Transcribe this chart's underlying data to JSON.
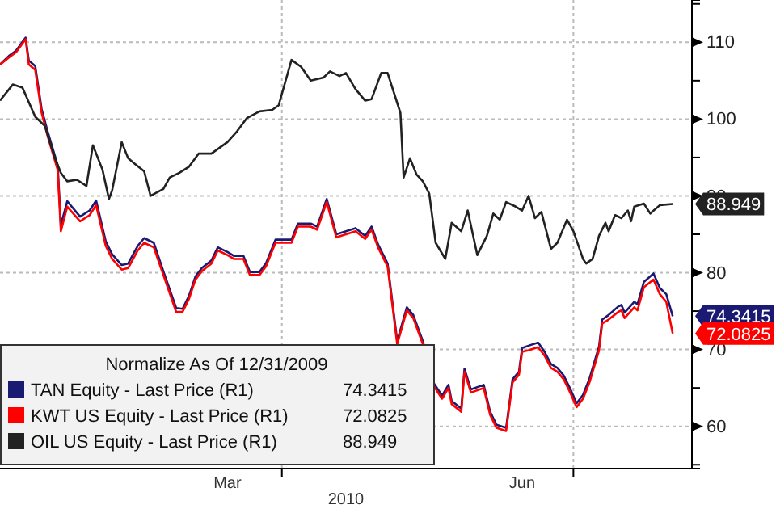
{
  "chart_data": {
    "type": "line",
    "legend_title": "Normalize As Of 12/31/2009",
    "xlabel": "2010",
    "legend": "bottom left",
    "grid": true,
    "line_style": "solid",
    "marker": "none",
    "xlim": [
      "2010-01-03",
      "2010-08-07"
    ],
    "ylim": [
      54.5,
      115.5
    ],
    "xticks": [
      {
        "value": "2010-03-15",
        "label": "Mar"
      },
      {
        "value": "2010-04-01",
        "label": null
      },
      {
        "value": "2010-06-15",
        "label": "Jun"
      },
      {
        "value": "2010-07-01",
        "label": null
      }
    ],
    "yticks": [
      {
        "value": 55,
        "label": null
      },
      60,
      {
        "value": 65,
        "label": null
      },
      70,
      {
        "value": 75,
        "label": null
      },
      80,
      {
        "value": 85,
        "label": null
      },
      90,
      {
        "value": 95,
        "label": null
      },
      100,
      {
        "value": 105,
        "label": null
      },
      110,
      {
        "value": 115,
        "label": null
      }
    ],
    "series": [
      {
        "name": "TAN Equity - Last Price (R1)",
        "color": "#1a1a72",
        "x": [
          "2010-01-03",
          "2010-01-06",
          "2010-01-08",
          "2010-01-11",
          "2010-01-12",
          "2010-01-14",
          "2010-01-16",
          "2010-01-18",
          "2010-01-21",
          "2010-01-22",
          "2010-01-24",
          "2010-01-28",
          "2010-01-31",
          "2010-02-02",
          "2010-02-05",
          "2010-02-07",
          "2010-02-10",
          "2010-02-12",
          "2010-02-15",
          "2010-02-17",
          "2010-02-20",
          "2010-02-23",
          "2010-02-27",
          "2010-03-01",
          "2010-03-03",
          "2010-03-05",
          "2010-03-07",
          "2010-03-10",
          "2010-03-12",
          "2010-03-15",
          "2010-03-17",
          "2010-03-20",
          "2010-03-22",
          "2010-03-25",
          "2010-03-27",
          "2010-03-30",
          "2010-04-04",
          "2010-04-06",
          "2010-04-10",
          "2010-04-12",
          "2010-04-15",
          "2010-04-18",
          "2010-04-21",
          "2010-04-24",
          "2010-04-27",
          "2010-04-29",
          "2010-05-01",
          "2010-05-04",
          "2010-05-07",
          "2010-05-10",
          "2010-05-12",
          "2010-05-15",
          "2010-05-18",
          "2010-05-21",
          "2010-05-23",
          "2010-05-24",
          "2010-05-27",
          "2010-05-28",
          "2010-05-30",
          "2010-06-03",
          "2010-06-05",
          "2010-06-07",
          "2010-06-10",
          "2010-06-12",
          "2010-06-14",
          "2010-06-15",
          "2010-06-17",
          "2010-06-20",
          "2010-06-22",
          "2010-06-24",
          "2010-06-26",
          "2010-06-28",
          "2010-06-30",
          "2010-07-02",
          "2010-07-04",
          "2010-07-06",
          "2010-07-09",
          "2010-07-10",
          "2010-07-12",
          "2010-07-15",
          "2010-07-16",
          "2010-07-17",
          "2010-07-20",
          "2010-07-21",
          "2010-07-23",
          "2010-07-26",
          "2010-07-28",
          "2010-07-30",
          "2010-08-01"
        ],
        "values": [
          107.1,
          108.3,
          108.9,
          110.6,
          107.6,
          106.9,
          101.3,
          98.2,
          94.0,
          86.2,
          89.3,
          87.3,
          88.1,
          89.4,
          84.1,
          82.4,
          81.0,
          81.2,
          83.5,
          84.5,
          83.9,
          80.2,
          75.4,
          75.3,
          77.0,
          79.5,
          80.6,
          81.6,
          83.3,
          82.7,
          82.2,
          82.2,
          80.1,
          80.1,
          81.2,
          84.3,
          84.3,
          86.4,
          86.4,
          86.0,
          89.6,
          85.0,
          85.4,
          85.8,
          84.8,
          86.0,
          83.7,
          81.2,
          71.1,
          75.5,
          74.5,
          71.1,
          65.9,
          64.0,
          65.4,
          63.3,
          62.3,
          67.5,
          64.8,
          65.4,
          61.9,
          60.2,
          59.8,
          66.1,
          67.1,
          70.2,
          70.5,
          70.9,
          69.7,
          68.1,
          67.6,
          66.6,
          64.9,
          63.0,
          64.1,
          66.2,
          70.4,
          73.9,
          74.5,
          75.6,
          75.8,
          74.8,
          76.2,
          75.9,
          78.8,
          79.9,
          78.0,
          77.2,
          74.3415
        ],
        "value_labels": [
          null,
          null,
          null,
          null,
          null,
          null,
          null,
          null,
          null,
          null,
          null,
          null,
          null,
          null,
          null,
          null,
          null,
          null,
          null,
          null,
          null,
          null,
          null,
          null,
          null,
          null,
          null,
          null,
          null,
          null,
          null,
          null,
          null,
          null,
          null,
          null,
          null,
          null,
          null,
          null,
          null,
          null,
          null,
          null,
          null,
          null,
          null,
          null,
          null,
          null,
          null,
          null,
          null,
          null,
          null,
          null,
          null,
          null,
          null,
          null,
          null,
          null,
          null,
          null,
          null,
          null,
          null,
          null,
          null,
          null,
          null,
          null,
          null,
          null,
          null,
          null,
          null,
          null,
          null,
          null,
          null,
          null,
          null,
          null,
          null,
          null,
          null,
          null,
          "74.3415"
        ]
      },
      {
        "name": "KWT US Equity - Last Price (R1)",
        "color": "#ff0000",
        "x": [
          "2010-01-03",
          "2010-01-06",
          "2010-01-08",
          "2010-01-11",
          "2010-01-12",
          "2010-01-14",
          "2010-01-16",
          "2010-01-18",
          "2010-01-21",
          "2010-01-22",
          "2010-01-24",
          "2010-01-28",
          "2010-01-31",
          "2010-02-02",
          "2010-02-05",
          "2010-02-07",
          "2010-02-10",
          "2010-02-12",
          "2010-02-15",
          "2010-02-17",
          "2010-02-20",
          "2010-02-23",
          "2010-02-27",
          "2010-03-01",
          "2010-03-03",
          "2010-03-05",
          "2010-03-07",
          "2010-03-10",
          "2010-03-12",
          "2010-03-15",
          "2010-03-17",
          "2010-03-20",
          "2010-03-22",
          "2010-03-25",
          "2010-03-27",
          "2010-03-30",
          "2010-04-04",
          "2010-04-06",
          "2010-04-10",
          "2010-04-12",
          "2010-04-15",
          "2010-04-18",
          "2010-04-21",
          "2010-04-24",
          "2010-04-27",
          "2010-04-29",
          "2010-05-01",
          "2010-05-04",
          "2010-05-07",
          "2010-05-10",
          "2010-05-12",
          "2010-05-15",
          "2010-05-18",
          "2010-05-21",
          "2010-05-23",
          "2010-05-24",
          "2010-05-27",
          "2010-05-28",
          "2010-05-30",
          "2010-06-03",
          "2010-06-05",
          "2010-06-07",
          "2010-06-10",
          "2010-06-12",
          "2010-06-14",
          "2010-06-15",
          "2010-06-17",
          "2010-06-20",
          "2010-06-22",
          "2010-06-24",
          "2010-06-26",
          "2010-06-28",
          "2010-06-30",
          "2010-07-02",
          "2010-07-04",
          "2010-07-06",
          "2010-07-09",
          "2010-07-10",
          "2010-07-12",
          "2010-07-15",
          "2010-07-16",
          "2010-07-17",
          "2010-07-20",
          "2010-07-21",
          "2010-07-23",
          "2010-07-26",
          "2010-07-28",
          "2010-07-30",
          "2010-08-01"
        ],
        "values": [
          107.1,
          108.1,
          108.7,
          110.4,
          107.1,
          106.4,
          100.8,
          97.6,
          93.4,
          85.4,
          88.6,
          86.7,
          87.5,
          88.8,
          83.5,
          81.8,
          80.4,
          80.6,
          82.9,
          83.9,
          83.3,
          79.7,
          74.9,
          74.9,
          76.6,
          79.1,
          80.2,
          81.2,
          82.9,
          82.3,
          81.8,
          81.8,
          79.7,
          79.7,
          80.8,
          83.9,
          83.9,
          86.0,
          86.0,
          85.6,
          89.2,
          84.6,
          85.0,
          85.4,
          84.4,
          85.6,
          83.3,
          80.8,
          70.7,
          75.1,
          74.1,
          70.7,
          65.5,
          63.6,
          65.0,
          62.9,
          61.9,
          67.1,
          64.4,
          65.0,
          61.5,
          59.8,
          59.4,
          65.7,
          66.7,
          69.7,
          69.9,
          70.3,
          69.2,
          67.6,
          67.1,
          66.1,
          64.4,
          62.5,
          63.6,
          65.7,
          69.9,
          73.4,
          73.9,
          74.9,
          75.1,
          74.1,
          75.5,
          75.1,
          78.1,
          79.1,
          77.2,
          76.2,
          72.0825
        ],
        "value_labels": [
          null,
          null,
          null,
          null,
          null,
          null,
          null,
          null,
          null,
          null,
          null,
          null,
          null,
          null,
          null,
          null,
          null,
          null,
          null,
          null,
          null,
          null,
          null,
          null,
          null,
          null,
          null,
          null,
          null,
          null,
          null,
          null,
          null,
          null,
          null,
          null,
          null,
          null,
          null,
          null,
          null,
          null,
          null,
          null,
          null,
          null,
          null,
          null,
          null,
          null,
          null,
          null,
          null,
          null,
          null,
          null,
          null,
          null,
          null,
          null,
          null,
          null,
          null,
          null,
          null,
          null,
          null,
          null,
          null,
          null,
          null,
          null,
          null,
          null,
          null,
          null,
          null,
          null,
          null,
          null,
          null,
          null,
          null,
          null,
          null,
          null,
          null,
          null,
          "72.0825"
        ]
      },
      {
        "name": "OIL US Equity - Last Price (R1)",
        "color": "#222222",
        "x": [
          "2010-01-03",
          "2010-01-07",
          "2010-01-10",
          "2010-01-12",
          "2010-01-14",
          "2010-01-17",
          "2010-01-20",
          "2010-01-22",
          "2010-01-24",
          "2010-01-27",
          "2010-01-30",
          "2010-02-01",
          "2010-02-04",
          "2010-02-06",
          "2010-02-07",
          "2010-02-10",
          "2010-02-12",
          "2010-02-14",
          "2010-02-17",
          "2010-02-19",
          "2010-02-23",
          "2010-02-25",
          "2010-02-28",
          "2010-03-03",
          "2010-03-06",
          "2010-03-10",
          "2010-03-15",
          "2010-03-18",
          "2010-03-21",
          "2010-03-25",
          "2010-03-29",
          "2010-03-31",
          "2010-04-04",
          "2010-04-07",
          "2010-04-10",
          "2010-04-14",
          "2010-04-16",
          "2010-04-19",
          "2010-04-21",
          "2010-04-24",
          "2010-04-27",
          "2010-04-29",
          "2010-05-02",
          "2010-05-04",
          "2010-05-08",
          "2010-05-09",
          "2010-05-11",
          "2010-05-13",
          "2010-05-15",
          "2010-05-17",
          "2010-05-19",
          "2010-05-22",
          "2010-05-24",
          "2010-05-27",
          "2010-05-29",
          "2010-06-01",
          "2010-06-04",
          "2010-06-06",
          "2010-06-08",
          "2010-06-10",
          "2010-06-13",
          "2010-06-15",
          "2010-06-17",
          "2010-06-19",
          "2010-06-21",
          "2010-06-24",
          "2010-06-26",
          "2010-06-29",
          "2010-07-01",
          "2010-07-04",
          "2010-07-05",
          "2010-07-07",
          "2010-07-09",
          "2010-07-11",
          "2010-07-12",
          "2010-07-14",
          "2010-07-16",
          "2010-07-18",
          "2010-07-19",
          "2010-07-20",
          "2010-07-23",
          "2010-07-25",
          "2010-07-28",
          "2010-08-01"
        ],
        "values": [
          102.4,
          104.5,
          104.1,
          102.2,
          100.3,
          99.1,
          95.1,
          93.0,
          91.9,
          92.1,
          91.3,
          96.6,
          93.4,
          89.6,
          90.7,
          97.0,
          94.9,
          94.2,
          93.2,
          90.0,
          90.9,
          92.4,
          93.0,
          93.8,
          95.5,
          95.5,
          97.0,
          98.4,
          100.1,
          101.0,
          101.2,
          101.8,
          107.7,
          106.8,
          105.0,
          105.4,
          106.2,
          105.6,
          106.0,
          103.9,
          102.4,
          102.6,
          106.0,
          106.0,
          100.8,
          92.4,
          94.9,
          92.8,
          91.9,
          90.3,
          83.9,
          81.8,
          86.5,
          85.4,
          88.1,
          82.3,
          84.8,
          87.7,
          86.9,
          89.2,
          88.6,
          88.1,
          90.0,
          87.1,
          87.9,
          83.1,
          83.9,
          86.9,
          85.4,
          81.8,
          81.2,
          81.8,
          84.8,
          86.5,
          85.4,
          87.5,
          87.1,
          88.1,
          86.7,
          88.6,
          89.0,
          87.7,
          88.8,
          88.949
        ],
        "value_labels": [
          null,
          null,
          null,
          null,
          null,
          null,
          null,
          null,
          null,
          null,
          null,
          null,
          null,
          null,
          null,
          null,
          null,
          null,
          null,
          null,
          null,
          null,
          null,
          null,
          null,
          null,
          null,
          null,
          null,
          null,
          null,
          null,
          null,
          null,
          null,
          null,
          null,
          null,
          null,
          null,
          null,
          null,
          null,
          null,
          null,
          null,
          null,
          null,
          null,
          null,
          null,
          null,
          null,
          null,
          null,
          null,
          null,
          null,
          null,
          null,
          null,
          null,
          null,
          null,
          null,
          null,
          null,
          null,
          null,
          null,
          null,
          null,
          null,
          null,
          null,
          null,
          null,
          null,
          null,
          null,
          null,
          null,
          null,
          "88.949"
        ]
      }
    ]
  }
}
